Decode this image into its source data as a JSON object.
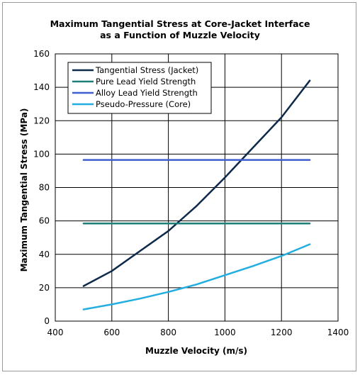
{
  "chart_data": {
    "type": "line",
    "title_line1": "Maximum Tangential Stress at Core-Jacket Interface",
    "title_line2": "as a Function of Muzzle Velocity",
    "xlabel": "Muzzle Velocity (m/s)",
    "ylabel": "Maximum Tangential Stress (MPa)",
    "xlim": [
      400,
      1400
    ],
    "ylim": [
      0,
      160
    ],
    "xticks": [
      400,
      600,
      800,
      1000,
      1200,
      1400
    ],
    "yticks": [
      0,
      20,
      40,
      60,
      80,
      100,
      120,
      140,
      160
    ],
    "grid": true,
    "legend_position": "top-left",
    "series": [
      {
        "name": "Tangential Stress (Jacket)",
        "color": "#0d2a4a",
        "x": [
          500,
          600,
          700,
          800,
          900,
          1000,
          1100,
          1200,
          1300
        ],
        "y": [
          21,
          30,
          42,
          54,
          69,
          86,
          104,
          122,
          144
        ]
      },
      {
        "name": "Pure Lead Yield Strength",
        "color": "#1f7f78",
        "x": [
          500,
          1300
        ],
        "y": [
          58.5,
          58.5
        ]
      },
      {
        "name": "Alloy Lead Yield Strength",
        "color": "#3f5fd0",
        "x": [
          500,
          1300
        ],
        "y": [
          96.5,
          96.5
        ]
      },
      {
        "name": "Pseudo-Pressure (Core)",
        "color": "#22aee0",
        "x": [
          500,
          600,
          700,
          800,
          900,
          1000,
          1100,
          1200,
          1300
        ],
        "y": [
          7,
          10,
          13.5,
          17.5,
          22,
          27.5,
          33,
          39,
          46
        ]
      }
    ]
  }
}
